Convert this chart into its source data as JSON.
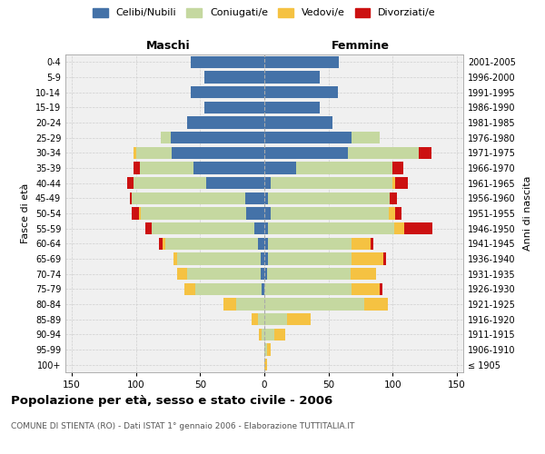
{
  "age_groups": [
    "100+",
    "95-99",
    "90-94",
    "85-89",
    "80-84",
    "75-79",
    "70-74",
    "65-69",
    "60-64",
    "55-59",
    "50-54",
    "45-49",
    "40-44",
    "35-39",
    "30-34",
    "25-29",
    "20-24",
    "15-19",
    "10-14",
    "5-9",
    "0-4"
  ],
  "birth_years": [
    "≤ 1905",
    "1906-1910",
    "1911-1915",
    "1916-1920",
    "1921-1925",
    "1926-1930",
    "1931-1935",
    "1936-1940",
    "1941-1945",
    "1946-1950",
    "1951-1955",
    "1956-1960",
    "1961-1965",
    "1966-1970",
    "1971-1975",
    "1976-1980",
    "1981-1985",
    "1986-1990",
    "1991-1995",
    "1996-2000",
    "2001-2005"
  ],
  "colors": {
    "celibe": "#4472a8",
    "coniugato": "#c5d8a0",
    "vedovo": "#f5c242",
    "divorziato": "#cc1111"
  },
  "maschi": {
    "celibe": [
      0,
      0,
      0,
      0,
      0,
      2,
      3,
      3,
      5,
      8,
      14,
      15,
      45,
      55,
      72,
      73,
      60,
      47,
      57,
      47,
      57
    ],
    "coniugato": [
      0,
      0,
      2,
      5,
      22,
      52,
      57,
      65,
      72,
      80,
      82,
      88,
      57,
      42,
      28,
      8,
      0,
      0,
      0,
      0,
      0
    ],
    "vedovo": [
      0,
      0,
      2,
      5,
      10,
      8,
      8,
      3,
      2,
      0,
      2,
      0,
      0,
      0,
      2,
      0,
      0,
      0,
      0,
      0,
      0
    ],
    "divorziato": [
      0,
      0,
      0,
      0,
      0,
      0,
      0,
      0,
      3,
      5,
      5,
      2,
      5,
      5,
      0,
      0,
      0,
      0,
      0,
      0,
      0
    ]
  },
  "femmine": {
    "celibe": [
      0,
      0,
      0,
      0,
      0,
      0,
      2,
      3,
      3,
      3,
      5,
      3,
      5,
      25,
      65,
      68,
      53,
      43,
      57,
      43,
      58
    ],
    "coniugato": [
      0,
      2,
      8,
      18,
      78,
      68,
      65,
      65,
      65,
      98,
      92,
      95,
      95,
      75,
      55,
      22,
      0,
      0,
      0,
      0,
      0
    ],
    "vedovo": [
      2,
      3,
      8,
      18,
      18,
      22,
      20,
      25,
      15,
      8,
      5,
      0,
      2,
      0,
      0,
      0,
      0,
      0,
      0,
      0,
      0
    ],
    "divorziato": [
      0,
      0,
      0,
      0,
      0,
      2,
      0,
      2,
      2,
      22,
      5,
      5,
      10,
      8,
      10,
      0,
      0,
      0,
      0,
      0,
      0
    ]
  },
  "title": "Popolazione per età, sesso e stato civile - 2006",
  "subtitle": "COMUNE DI STIENTA (RO) - Dati ISTAT 1° gennaio 2006 - Elaborazione TUTTITALIA.IT",
  "ylabel_left": "Fasce di età",
  "ylabel_right": "Anni di nascita",
  "xlabel_maschi": "Maschi",
  "xlabel_femmine": "Femmine",
  "xlim": 155,
  "bg_color": "#ffffff",
  "plot_bg": "#f0f0f0",
  "grid_color": "#cccccc",
  "legend_labels": [
    "Celibi/Nubili",
    "Coniugati/e",
    "Vedovi/e",
    "Divorziati/e"
  ]
}
